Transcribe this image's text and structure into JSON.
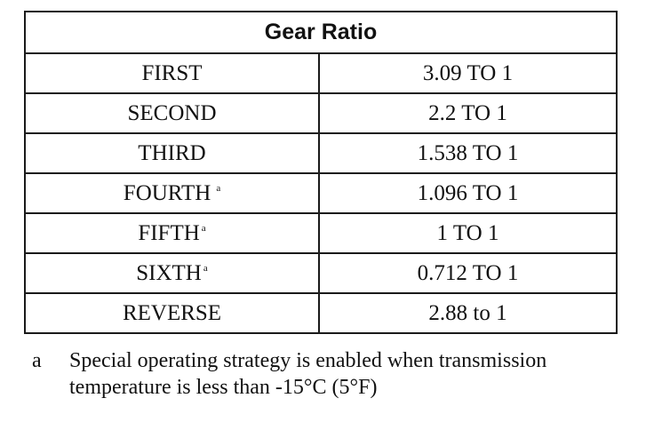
{
  "table": {
    "header": "Gear Ratio",
    "rows": [
      {
        "gear": "FIRST",
        "ratio": "3.09 TO 1",
        "note": ""
      },
      {
        "gear": "SECOND",
        "ratio": "2.2 TO 1",
        "note": ""
      },
      {
        "gear": "THIRD",
        "ratio": "1.538 TO 1",
        "note": ""
      },
      {
        "gear": "FOURTH",
        "ratio": "1.096 TO 1",
        "note": "a"
      },
      {
        "gear": "FIFTH",
        "ratio": "1 TO 1",
        "note": "a"
      },
      {
        "gear": "SIXTH",
        "ratio": "0.712 TO 1",
        "note": "a"
      },
      {
        "gear": "REVERSE",
        "ratio": "2.88 to 1",
        "note": ""
      }
    ]
  },
  "footnote": {
    "marker": "a",
    "text": "Special operating strategy is enabled when transmission temperature is less than -15°C (5°F)"
  }
}
